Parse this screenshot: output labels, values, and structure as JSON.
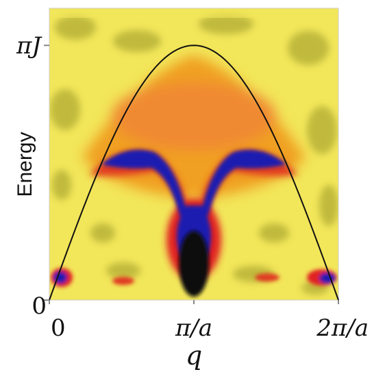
{
  "chart_data": {
    "type": "heatmap",
    "title": "",
    "xlabel": "q",
    "ylabel": "Energy",
    "x_ticks": [
      {
        "value": 0,
        "label": "0"
      },
      {
        "value": 1,
        "label": "π/a"
      },
      {
        "value": 2,
        "label": "2π/a"
      }
    ],
    "y_ticks": [
      {
        "value": 0,
        "label": "0"
      },
      {
        "value": 3.1416,
        "label": "πJ"
      }
    ],
    "x_unit": "π/a",
    "y_unit": "J",
    "xlim": [
      0,
      2
    ],
    "ylim": [
      0,
      3.6
    ],
    "colormap": [
      "#000000",
      "#1a1ab0",
      "#d81818",
      "#f07838",
      "#f0a020",
      "#f2e65a",
      "#b8b238"
    ],
    "upper_boundary": {
      "formula": "E = πJ·sin(q·a/2)",
      "x": [
        0,
        0.25,
        0.5,
        0.75,
        1.0,
        1.25,
        1.5,
        1.75,
        2.0
      ],
      "y": [
        0,
        1.2,
        2.22,
        2.9,
        3.14,
        2.9,
        2.22,
        1.2,
        0
      ],
      "color": "#111111"
    },
    "intensity_ridge": {
      "description_color": "#1a1ab0",
      "x": [
        0.1,
        0.3,
        0.5,
        0.7,
        0.9,
        1.0,
        1.1,
        1.3,
        1.5,
        1.7,
        1.9
      ],
      "y": [
        1.55,
        1.82,
        1.85,
        1.5,
        0.8,
        0.2,
        0.8,
        1.5,
        1.85,
        1.82,
        1.55
      ]
    }
  }
}
